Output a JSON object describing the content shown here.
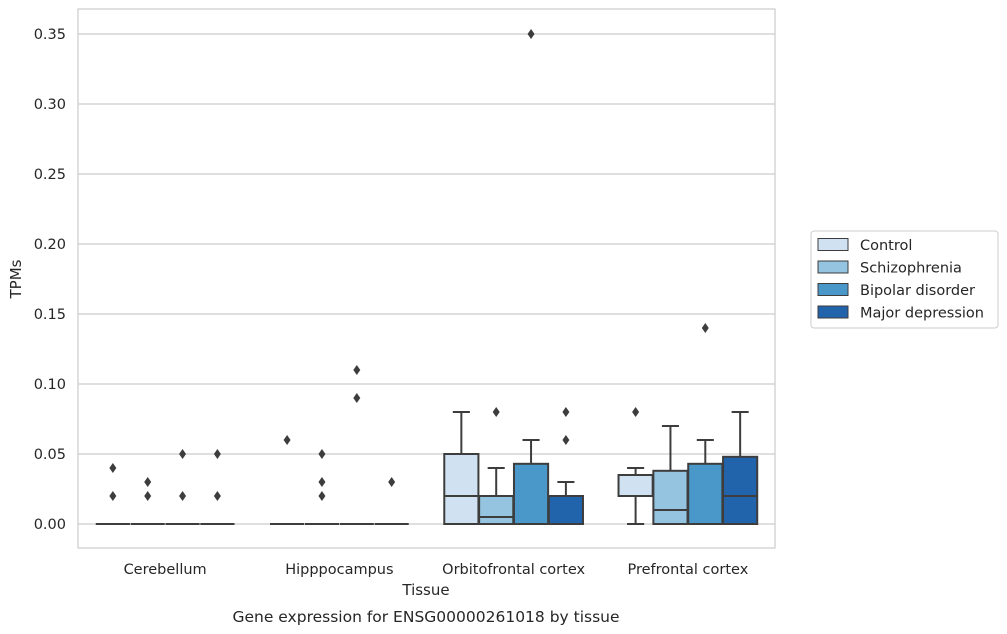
{
  "chart_data": {
    "type": "box",
    "title": "",
    "caption": "Gene expression for ENSG00000261018 by tissue",
    "xlabel": "Tissue",
    "ylabel": "TPMs",
    "ylim": [
      -0.017,
      0.367
    ],
    "yticks": [
      "0.00",
      "0.05",
      "0.10",
      "0.15",
      "0.20",
      "0.25",
      "0.30",
      "0.35"
    ],
    "ytick_values": [
      0,
      0.05,
      0.1,
      0.15,
      0.2,
      0.25,
      0.3,
      0.35
    ],
    "categories": [
      "Cerebellum",
      "Hipppocampus",
      "Orbitofrontal cortex",
      "Prefrontal cortex"
    ],
    "grid": "horizontal",
    "legend_position": "right",
    "series": [
      {
        "name": "Control",
        "color": "#d0e1f2",
        "boxes": [
          {
            "q1": 0,
            "median": 0,
            "q3": 0,
            "whislo": 0,
            "whishi": 0,
            "fliers": [
              0.02,
              0.04
            ]
          },
          {
            "q1": 0,
            "median": 0,
            "q3": 0,
            "whislo": 0,
            "whishi": 0,
            "fliers": [
              0.06
            ]
          },
          {
            "q1": 0,
            "median": 0.02,
            "q3": 0.05,
            "whislo": 0,
            "whishi": 0.08,
            "fliers": []
          },
          {
            "q1": 0.02,
            "median": 0.035,
            "q3": 0.035,
            "whislo": 0,
            "whishi": 0.04,
            "fliers": [
              0.08
            ]
          }
        ]
      },
      {
        "name": "Schizophrenia",
        "color": "#94c4df",
        "boxes": [
          {
            "q1": 0,
            "median": 0,
            "q3": 0,
            "whislo": 0,
            "whishi": 0,
            "fliers": [
              0.02,
              0.03
            ]
          },
          {
            "q1": 0,
            "median": 0,
            "q3": 0,
            "whislo": 0,
            "whishi": 0,
            "fliers": [
              0.02,
              0.03,
              0.05
            ]
          },
          {
            "q1": 0,
            "median": 0.005,
            "q3": 0.02,
            "whislo": 0,
            "whishi": 0.04,
            "fliers": [
              0.08
            ]
          },
          {
            "q1": 0,
            "median": 0.01,
            "q3": 0.038,
            "whislo": 0,
            "whishi": 0.07,
            "fliers": []
          }
        ]
      },
      {
        "name": "Bipolar disorder",
        "color": "#4a98c9",
        "boxes": [
          {
            "q1": 0,
            "median": 0,
            "q3": 0,
            "whislo": 0,
            "whishi": 0,
            "fliers": [
              0.02,
              0.05
            ]
          },
          {
            "q1": 0,
            "median": 0,
            "q3": 0,
            "whislo": 0,
            "whishi": 0,
            "fliers": [
              0.09,
              0.11
            ]
          },
          {
            "q1": 0,
            "median": 0,
            "q3": 0.043,
            "whislo": 0,
            "whishi": 0.06,
            "fliers": [
              0.35
            ]
          },
          {
            "q1": 0,
            "median": 0,
            "q3": 0.043,
            "whislo": 0,
            "whishi": 0.06,
            "fliers": [
              0.14
            ]
          }
        ]
      },
      {
        "name": "Major depression",
        "color": "#2164ab",
        "boxes": [
          {
            "q1": 0,
            "median": 0,
            "q3": 0,
            "whislo": 0,
            "whishi": 0,
            "fliers": [
              0.02,
              0.05
            ]
          },
          {
            "q1": 0,
            "median": 0,
            "q3": 0,
            "whislo": 0,
            "whishi": 0,
            "fliers": [
              0.03
            ]
          },
          {
            "q1": 0,
            "median": 0,
            "q3": 0.02,
            "whislo": 0,
            "whishi": 0.03,
            "fliers": [
              0.06,
              0.08
            ]
          },
          {
            "q1": 0,
            "median": 0.02,
            "q3": 0.048,
            "whislo": 0,
            "whishi": 0.08,
            "fliers": []
          }
        ]
      }
    ]
  }
}
